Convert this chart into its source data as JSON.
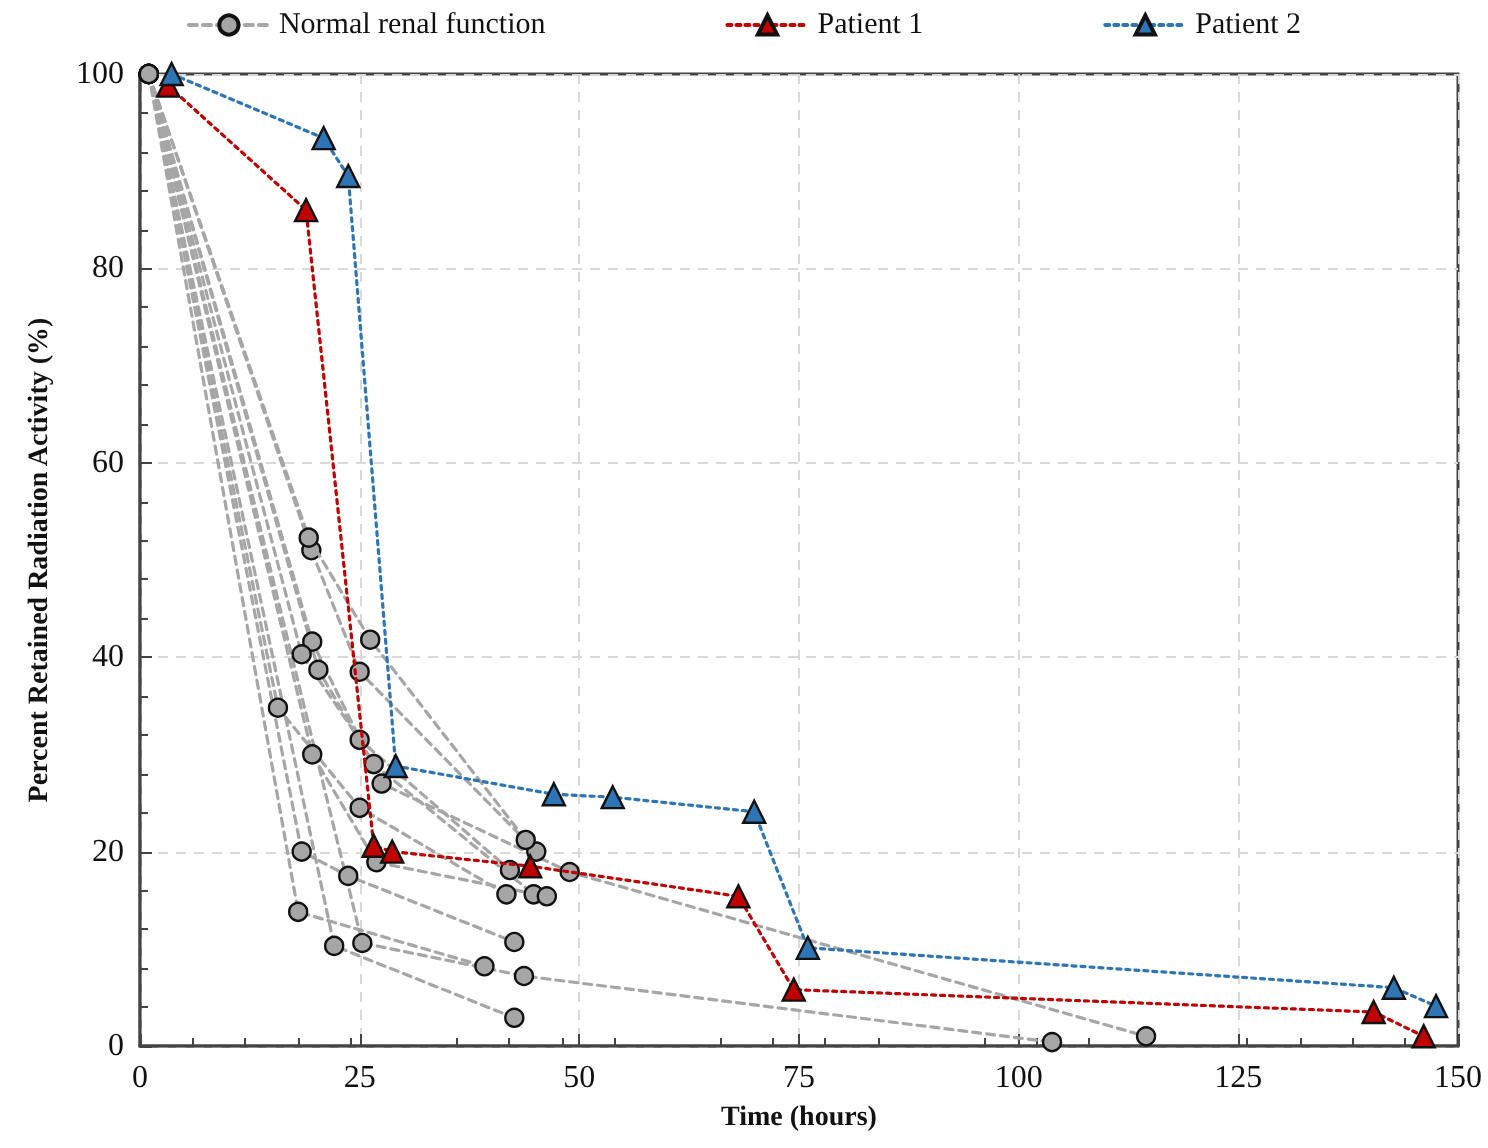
{
  "chart_data": {
    "type": "line",
    "xlabel": "Time (hours)",
    "ylabel": "Percent Retained Radiation Activity (%)",
    "xlim": [
      0,
      150
    ],
    "xticks": [
      0,
      25,
      50,
      75,
      100,
      125,
      150
    ],
    "ylim": [
      0,
      100
    ],
    "yticks": [
      0,
      20,
      40,
      60,
      80,
      100
    ],
    "grid": true,
    "legend": "top",
    "series": [
      {
        "name": "Normal renal function",
        "color": "#a6a6a6",
        "marker": "circle",
        "line_style": "dashed",
        "x": [
          1,
          19.2,
          26.2,
          43.9
        ],
        "values": [
          100,
          52.3,
          41.8,
          21.2
        ]
      },
      {
        "color": "#a6a6a6",
        "marker": "circle",
        "line_style": "dashed",
        "x": [
          1,
          19.5,
          25.0,
          45.1
        ],
        "values": [
          100,
          51.0,
          38.5,
          20.0
        ]
      },
      {
        "color": "#a6a6a6",
        "marker": "circle",
        "line_style": "dashed",
        "x": [
          1,
          19.6,
          27.5,
          48.9,
          114.5
        ],
        "values": [
          100,
          41.6,
          27.0,
          17.9,
          1.0
        ]
      },
      {
        "color": "#a6a6a6",
        "marker": "circle",
        "line_style": "dashed",
        "x": [
          1,
          18.4,
          25.0,
          42.1
        ],
        "values": [
          100,
          40.3,
          31.5,
          18.1
        ]
      },
      {
        "color": "#a6a6a6",
        "marker": "circle",
        "line_style": "dashed",
        "x": [
          1,
          20.3,
          26.6,
          44.8
        ],
        "values": [
          100,
          38.7,
          29.0,
          15.6
        ]
      },
      {
        "color": "#a6a6a6",
        "marker": "circle",
        "line_style": "dashed",
        "x": [
          1,
          15.7,
          25.0,
          41.7
        ],
        "values": [
          100,
          34.8,
          24.5,
          15.6
        ]
      },
      {
        "color": "#a6a6a6",
        "marker": "circle",
        "line_style": "dashed",
        "x": [
          1,
          19.6,
          26.9,
          46.3
        ],
        "values": [
          100,
          30.0,
          18.9,
          15.4
        ]
      },
      {
        "color": "#a6a6a6",
        "marker": "circle",
        "line_style": "dashed",
        "x": [
          1,
          18.4,
          23.7,
          42.6
        ],
        "values": [
          100,
          20.0,
          17.5,
          10.7
        ]
      },
      {
        "color": "#a6a6a6",
        "marker": "circle",
        "line_style": "dashed",
        "x": [
          1,
          18.0,
          39.2
        ],
        "values": [
          100,
          13.8,
          8.2
        ]
      },
      {
        "color": "#a6a6a6",
        "marker": "circle",
        "line_style": "dashed",
        "x": [
          1,
          25.3,
          43.7,
          103.8
        ],
        "values": [
          100,
          10.6,
          7.2,
          0.4
        ]
      },
      {
        "color": "#a6a6a6",
        "marker": "circle",
        "line_style": "dashed",
        "x": [
          1,
          22.1,
          42.6
        ],
        "values": [
          100,
          10.3,
          2.9
        ]
      },
      {
        "name": "Patient 1",
        "color": "#c00000",
        "marker": "triangle",
        "line_style": "dotted",
        "x": [
          3.2,
          18.9,
          26.6,
          28.7,
          44.4,
          68.1,
          74.4,
          140.4,
          146.1
        ],
        "values": [
          98.8,
          86,
          20.6,
          20.0,
          18.5,
          15.4,
          5.8,
          3.5,
          1.0
        ]
      },
      {
        "name": "Patient 2",
        "color": "#2e75b6",
        "marker": "triangle",
        "line_style": "dotted",
        "x": [
          3.6,
          20.9,
          23.7,
          29.1,
          47.1,
          53.8,
          69.9,
          76.0,
          142.7,
          147.5
        ],
        "values": [
          100,
          93.4,
          89.5,
          28.8,
          25.9,
          25.6,
          24.1,
          10.1,
          6.0,
          4.1
        ]
      }
    ]
  }
}
